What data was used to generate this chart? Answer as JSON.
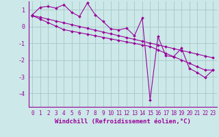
{
  "x": [
    0,
    1,
    2,
    3,
    4,
    5,
    6,
    7,
    8,
    9,
    10,
    11,
    12,
    13,
    14,
    15,
    16,
    17,
    18,
    19,
    20,
    21,
    22,
    23
  ],
  "y_main": [
    0.7,
    1.15,
    1.2,
    1.1,
    1.3,
    0.85,
    0.6,
    1.4,
    0.7,
    0.3,
    -0.15,
    -0.2,
    -0.1,
    -0.55,
    0.5,
    -4.4,
    -0.6,
    -1.75,
    -1.8,
    -1.3,
    -2.5,
    -2.75,
    -3.05,
    -2.6
  ],
  "y_line1": [
    0.65,
    0.55,
    0.44,
    0.33,
    0.22,
    0.11,
    0.0,
    -0.11,
    -0.22,
    -0.33,
    -0.44,
    -0.55,
    -0.66,
    -0.77,
    -0.88,
    -0.99,
    -1.1,
    -1.21,
    -1.32,
    -1.43,
    -1.54,
    -1.65,
    -1.76,
    -1.87
  ],
  "y_line2": [
    0.65,
    0.44,
    0.23,
    0.02,
    -0.19,
    -0.28,
    -0.37,
    -0.46,
    -0.55,
    -0.65,
    -0.74,
    -0.83,
    -0.92,
    -1.01,
    -1.1,
    -1.19,
    -1.4,
    -1.6,
    -1.8,
    -2.0,
    -2.2,
    -2.4,
    -2.6,
    -2.6
  ],
  "line_color": "#990099",
  "bg_color": "#cce8e8",
  "grid_color": "#aacccc",
  "xlabel": "Windchill (Refroidissement éolien,°C)",
  "ylim": [
    -4.8,
    1.5
  ],
  "xlim": [
    -0.5,
    23.5
  ],
  "yticks": [
    1,
    0,
    -1,
    -2,
    -3,
    -4
  ],
  "xticks": [
    0,
    1,
    2,
    3,
    4,
    5,
    6,
    7,
    8,
    9,
    10,
    11,
    12,
    13,
    14,
    15,
    16,
    17,
    18,
    19,
    20,
    21,
    22,
    23
  ],
  "tick_fontsize": 5.5,
  "xlabel_fontsize": 6.5
}
